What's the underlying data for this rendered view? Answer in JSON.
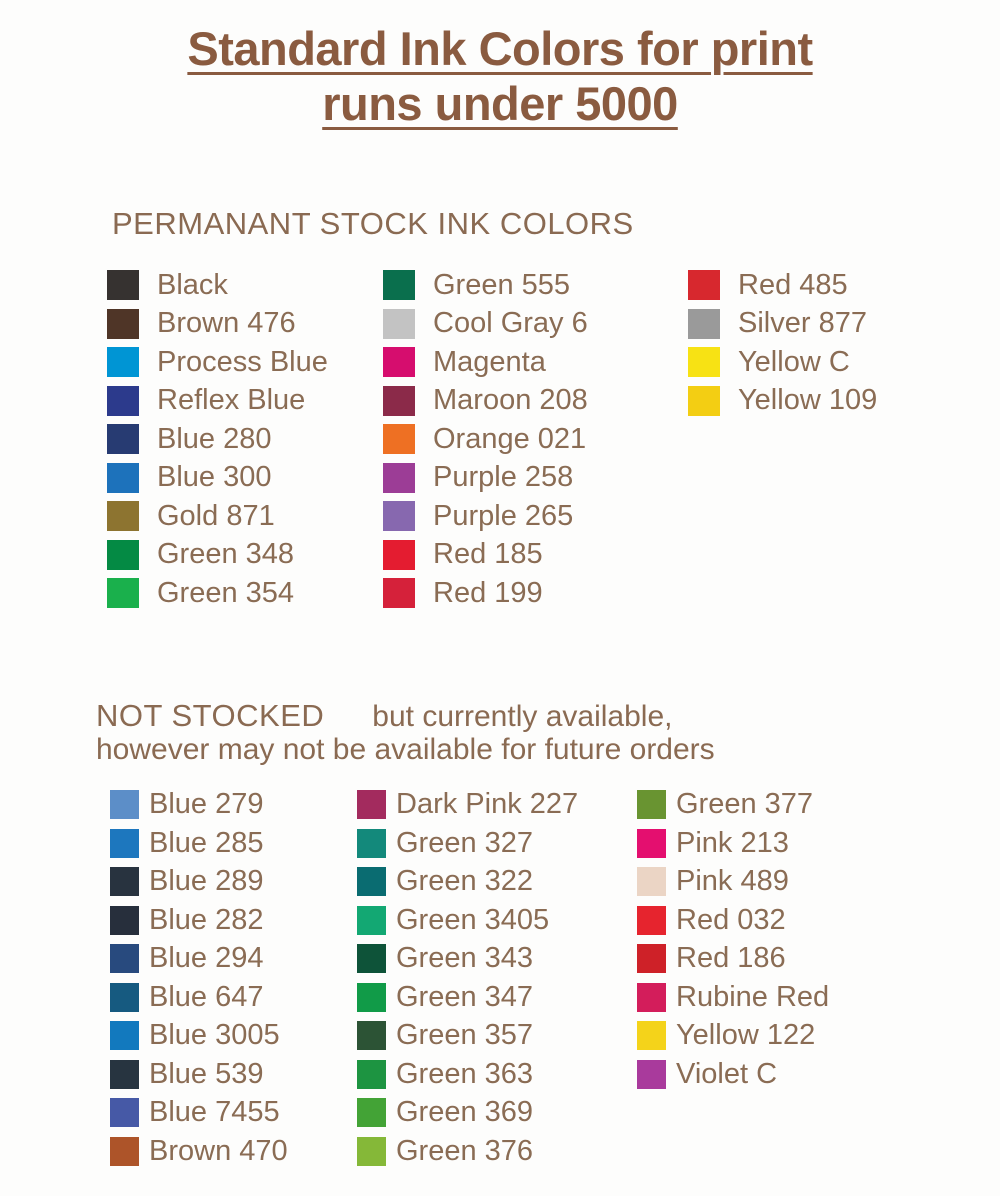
{
  "title": {
    "line1": "Standard Ink Colors for print",
    "line2": "runs under 5000"
  },
  "permanent_section": {
    "heading": "PERMANANT STOCK INK COLORS",
    "columns": [
      {
        "items": [
          {
            "label": "Black",
            "color": "#363230"
          },
          {
            "label": "Brown 476",
            "color": "#4f3527"
          },
          {
            "label": "Process Blue",
            "color": "#0095d4"
          },
          {
            "label": "Reflex Blue",
            "color": "#2c3a8c"
          },
          {
            "label": "Blue 280",
            "color": "#273b72"
          },
          {
            "label": "Blue 300",
            "color": "#1d72bb"
          },
          {
            "label": "Gold 871",
            "color": "#8d7430"
          },
          {
            "label": "Green 348",
            "color": "#048a44"
          },
          {
            "label": "Green 354",
            "color": "#1ab04c"
          }
        ]
      },
      {
        "items": [
          {
            "label": "Green 555",
            "color": "#0a6f4d"
          },
          {
            "label": "Cool Gray 6",
            "color": "#c3c3c3"
          },
          {
            "label": "Magenta",
            "color": "#d60d6e"
          },
          {
            "label": "Maroon 208",
            "color": "#8b2a49"
          },
          {
            "label": "Orange 021",
            "color": "#ee7023"
          },
          {
            "label": "Purple 258",
            "color": "#9c3d96"
          },
          {
            "label": "Purple 265",
            "color": "#8768af"
          },
          {
            "label": "Red 185",
            "color": "#e41c30"
          },
          {
            "label": "Red 199",
            "color": "#d5213a"
          }
        ]
      },
      {
        "items": [
          {
            "label": "Red 485",
            "color": "#d7282e"
          },
          {
            "label": "Silver 877",
            "color": "#9a9a9a"
          },
          {
            "label": "Yellow C",
            "color": "#f7e214"
          },
          {
            "label": "Yellow 109",
            "color": "#f3ce13"
          }
        ]
      }
    ]
  },
  "not_stocked_section": {
    "heading_strong": "NOT STOCKED",
    "heading_rest": "but currently available,",
    "heading_line2": "however may not be available for future orders",
    "columns": [
      {
        "items": [
          {
            "label": "Blue 279",
            "color": "#5c8ec8"
          },
          {
            "label": "Blue 285",
            "color": "#1d77be"
          },
          {
            "label": "Blue 289",
            "color": "#28333f"
          },
          {
            "label": "Blue 282",
            "color": "#272f3c"
          },
          {
            "label": "Blue 294",
            "color": "#284a7e"
          },
          {
            "label": "Blue 647",
            "color": "#165a80"
          },
          {
            "label": "Blue 3005",
            "color": "#1279be"
          },
          {
            "label": "Blue 539",
            "color": "#273440"
          },
          {
            "label": "Blue 7455",
            "color": "#4659a6"
          },
          {
            "label": "Brown 470",
            "color": "#ad5429"
          }
        ]
      },
      {
        "items": [
          {
            "label": "Dark Pink 227",
            "color": "#a32b5e"
          },
          {
            "label": "Green 327",
            "color": "#13897b"
          },
          {
            "label": "Green 322",
            "color": "#0a6c71"
          },
          {
            "label": "Green 3405",
            "color": "#13a873"
          },
          {
            "label": "Green 343",
            "color": "#0e5339"
          },
          {
            "label": "Green 347",
            "color": "#119b48"
          },
          {
            "label": "Green 357",
            "color": "#2c5335"
          },
          {
            "label": "Green 363",
            "color": "#1d9441"
          },
          {
            "label": "Green 369",
            "color": "#43a336"
          },
          {
            "label": "Green 376",
            "color": "#85b838"
          }
        ]
      },
      {
        "items": [
          {
            "label": "Green 377",
            "color": "#699431"
          },
          {
            "label": "Pink 213",
            "color": "#e40f6f"
          },
          {
            "label": "Pink 489",
            "color": "#ebd5c5"
          },
          {
            "label": "Red 032",
            "color": "#e6242e"
          },
          {
            "label": "Red 186",
            "color": "#ce2128"
          },
          {
            "label": "Rubine Red",
            "color": "#d31d5b"
          },
          {
            "label": "Yellow 122",
            "color": "#f4d31a"
          },
          {
            "label": "Violet C",
            "color": "#a93a9c"
          }
        ]
      }
    ]
  }
}
